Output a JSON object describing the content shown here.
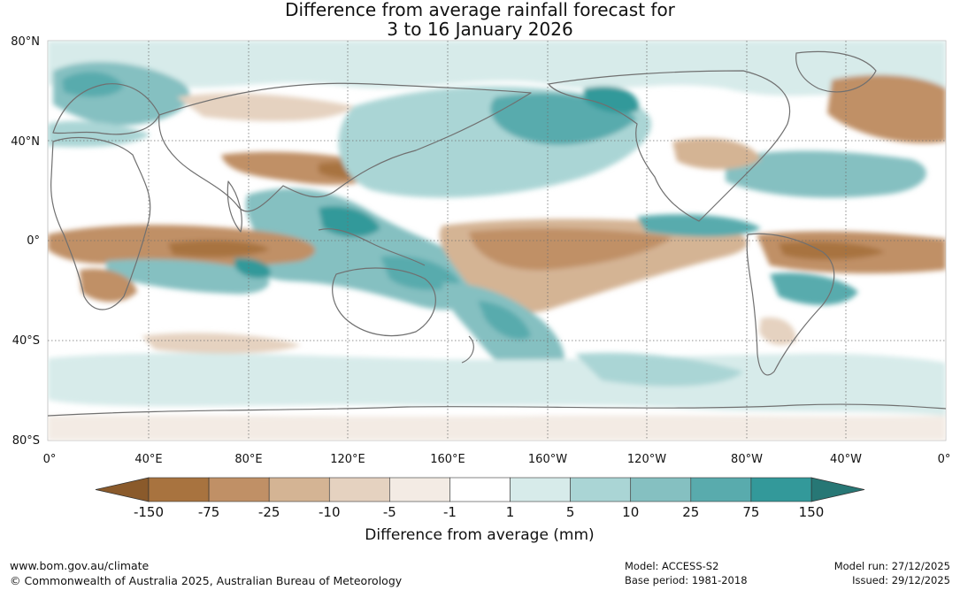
{
  "title": {
    "line1": "Difference from average rainfall forecast for",
    "line2": "3 to 16 January 2026"
  },
  "map": {
    "lat_labels": [
      "80°N",
      "40°N",
      "0°",
      "40°S",
      "80°S"
    ],
    "lon_labels": [
      "0°",
      "40°E",
      "80°E",
      "120°E",
      "160°E",
      "160°W",
      "120°W",
      "80°W",
      "40°W",
      "0°"
    ]
  },
  "legend": {
    "title": "Difference from average (mm)",
    "ticks": [
      "-150",
      "-75",
      "-25",
      "-10",
      "-5",
      "-1",
      "1",
      "5",
      "10",
      "25",
      "75",
      "150"
    ],
    "colors": {
      "below_min": "#8a5a2b",
      "bins": [
        "#a8733f",
        "#c09066",
        "#d4b494",
        "#e5d2c0",
        "#f3ebe4",
        "#ffffff",
        "#d7ebea",
        "#aad5d5",
        "#85c0c1",
        "#59abad",
        "#33999a"
      ],
      "above_max": "#277775"
    }
  },
  "footer": {
    "website": "www.bom.gov.au/climate",
    "copyright": "© Commonwealth of Australia 2025, Australian Bureau of Meteorology",
    "model": "Model: ACCESS-S2",
    "base_period": "Base period: 1981-2018",
    "model_run": "Model run: 27/12/2025",
    "issued": "Issued: 29/12/2025"
  }
}
